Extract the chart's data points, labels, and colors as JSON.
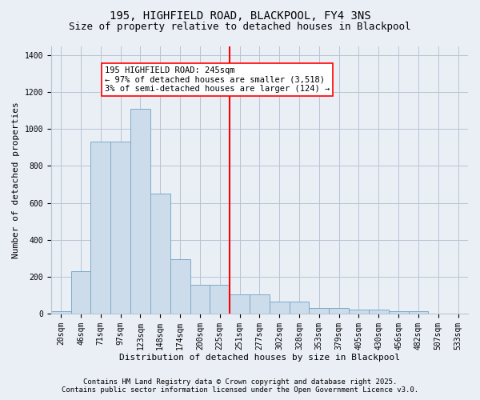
{
  "title": "195, HIGHFIELD ROAD, BLACKPOOL, FY4 3NS",
  "subtitle": "Size of property relative to detached houses in Blackpool",
  "xlabel": "Distribution of detached houses by size in Blackpool",
  "ylabel": "Number of detached properties",
  "categories": [
    "20sqm",
    "46sqm",
    "71sqm",
    "97sqm",
    "123sqm",
    "148sqm",
    "174sqm",
    "200sqm",
    "225sqm",
    "251sqm",
    "277sqm",
    "302sqm",
    "328sqm",
    "353sqm",
    "379sqm",
    "405sqm",
    "430sqm",
    "456sqm",
    "482sqm",
    "507sqm",
    "533sqm"
  ],
  "values": [
    15,
    230,
    930,
    930,
    1110,
    650,
    295,
    155,
    155,
    105,
    105,
    65,
    65,
    30,
    30,
    20,
    20,
    15,
    15,
    0,
    0
  ],
  "bar_color": "#cddcea",
  "bar_edge_color": "#7aaac8",
  "annotation_text": "195 HIGHFIELD ROAD: 245sqm\n← 97% of detached houses are smaller (3,518)\n3% of semi-detached houses are larger (124) →",
  "vline_color": "red",
  "annotation_box_color": "white",
  "annotation_box_edge_color": "red",
  "ylim": [
    0,
    1450
  ],
  "yticks": [
    0,
    200,
    400,
    600,
    800,
    1000,
    1200,
    1400
  ],
  "footer1": "Contains HM Land Registry data © Crown copyright and database right 2025.",
  "footer2": "Contains public sector information licensed under the Open Government Licence v3.0.",
  "background_color": "#eaeff6",
  "plot_background_color": "#eaeff6",
  "grid_color": "#b8c4d4",
  "title_fontsize": 10,
  "subtitle_fontsize": 9,
  "axis_label_fontsize": 8,
  "tick_fontsize": 7,
  "annotation_fontsize": 7.5,
  "footer_fontsize": 6.5
}
